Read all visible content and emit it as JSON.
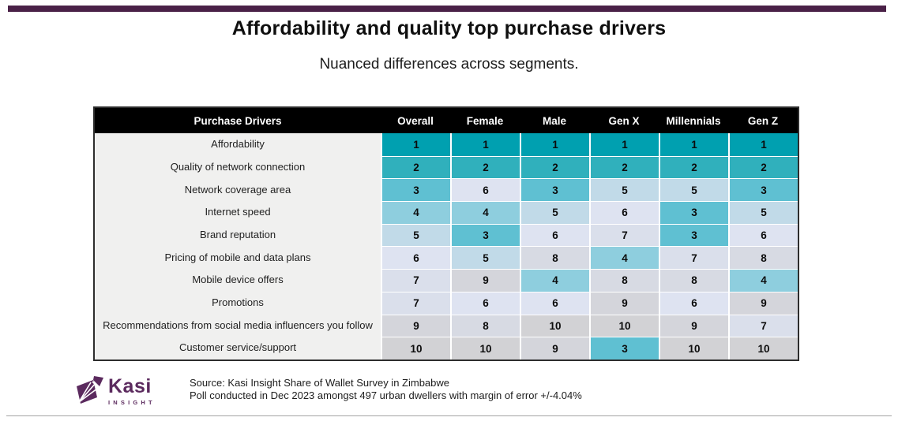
{
  "page": {
    "accent_bar_color": "#4a2147",
    "background": "#ffffff"
  },
  "chart_data": {
    "type": "heatmap",
    "title": "Affordability and quality top purchase drivers",
    "subtitle": "Nuanced differences across segments.",
    "row_header": "Purchase Drivers",
    "columns": [
      "Overall",
      "Female",
      "Male",
      "Gen X",
      "Millennials",
      "Gen Z"
    ],
    "rows": [
      "Affordability",
      "Quality of network connection",
      "Network coverage area",
      "Internet speed",
      "Brand reputation",
      "Pricing of mobile and data plans",
      "Mobile device offers",
      "Promotions",
      "Recommendations from social media influencers you follow",
      "Customer service/support"
    ],
    "values": [
      [
        1,
        1,
        1,
        1,
        1,
        1
      ],
      [
        2,
        2,
        2,
        2,
        2,
        2
      ],
      [
        3,
        6,
        3,
        5,
        5,
        3
      ],
      [
        4,
        4,
        5,
        6,
        3,
        5
      ],
      [
        5,
        3,
        6,
        7,
        3,
        6
      ],
      [
        6,
        5,
        8,
        4,
        7,
        8
      ],
      [
        7,
        9,
        4,
        8,
        8,
        4
      ],
      [
        7,
        6,
        6,
        9,
        6,
        9
      ],
      [
        9,
        8,
        10,
        10,
        9,
        7
      ],
      [
        10,
        10,
        9,
        3,
        10,
        10
      ]
    ],
    "value_meaning": "rank: 1 = strongest purchase driver, 10 = weakest",
    "rank_colors": {
      "1": "#00a0b0",
      "2": "#30b0bc",
      "3": "#5fc0d2",
      "4": "#8ecede",
      "5": "#c1dae8",
      "6": "#dee3f1",
      "7": "#dadfeb",
      "8": "#d7dae3",
      "9": "#d4d5db",
      "10": "#d2d2d5"
    },
    "header_bg": "#000000",
    "header_text_color": "#ffffff",
    "label_column_bg": "#f0f0ef",
    "legend_position": "none",
    "grid": "white cell separators"
  },
  "footer": {
    "logo": {
      "name": "Kasi",
      "tagline": "INSIGHT",
      "color": "#5b2a5e"
    },
    "source_line1": "Source: Kasi Insight Share of Wallet Survey in Zimbabwe",
    "source_line2": "Poll conducted  in Dec 2023 amongst 497 urban dwellers with margin of error +/-4.04%"
  }
}
